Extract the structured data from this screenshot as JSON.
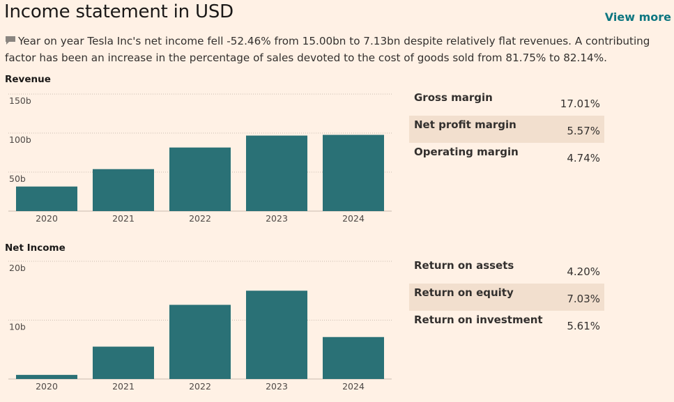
{
  "header": {
    "title": "Income statement in USD",
    "view_more": "View more"
  },
  "summary": "Year on year Tesla Inc's net income fell -52.46% from 15.00bn to 7.13bn despite relatively flat revenues. A contributing factor has been an increase in the percentage of sales devoted to the cost of goods sold from 81.75% to 82.14%.",
  "icons": {
    "comment": "speech-bubble-icon"
  },
  "colors": {
    "bar": "#2a7176",
    "accent": "#0d7680",
    "background": "#fff1e5",
    "shaded_row": "#f2dfce"
  },
  "chart_data": [
    {
      "type": "bar",
      "title": "Revenue",
      "categories": [
        "2020",
        "2021",
        "2022",
        "2023",
        "2024"
      ],
      "values": [
        31.5,
        53.8,
        81.5,
        96.8,
        97.7
      ],
      "unit": "b",
      "yticks": [
        50,
        100,
        150
      ],
      "ytick_labels": [
        "50b",
        "100b",
        "150b"
      ],
      "ylim": [
        0,
        150
      ],
      "xlabel": "",
      "ylabel": ""
    },
    {
      "type": "bar",
      "title": "Net Income",
      "categories": [
        "2020",
        "2021",
        "2022",
        "2023",
        "2024"
      ],
      "values": [
        0.7,
        5.5,
        12.6,
        15.0,
        7.13
      ],
      "unit": "b",
      "yticks": [
        10,
        20
      ],
      "ytick_labels": [
        "10b",
        "20b"
      ],
      "ylim": [
        0,
        20
      ],
      "xlabel": "",
      "ylabel": ""
    }
  ],
  "ratios": {
    "margins": [
      {
        "label": "Gross margin",
        "value": "17.01%"
      },
      {
        "label": "Net profit margin",
        "value": "5.57%"
      },
      {
        "label": "Operating margin",
        "value": "4.74%"
      }
    ],
    "returns": [
      {
        "label": "Return on assets",
        "value": "4.20%"
      },
      {
        "label": "Return on equity",
        "value": "7.03%"
      },
      {
        "label": "Return on investment",
        "value": "5.61%"
      }
    ]
  }
}
